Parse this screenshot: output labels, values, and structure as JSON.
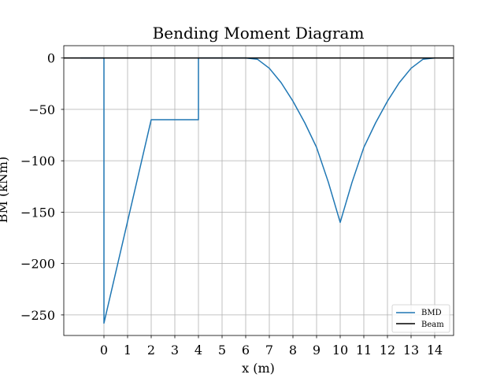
{
  "chart_data": {
    "type": "line",
    "title": "Bending Moment Diagram",
    "xlabel": "x (m)",
    "ylabel": "BM (kNm)",
    "xlim": [
      -1.7,
      14.8
    ],
    "ylim": [
      -270,
      12
    ],
    "xticks": [
      0,
      1,
      2,
      3,
      4,
      5,
      6,
      7,
      8,
      9,
      10,
      11,
      12,
      13,
      14
    ],
    "yticks": [
      0,
      -50,
      -100,
      -150,
      -200,
      -250
    ],
    "ytick_labels": [
      "0",
      "−50",
      "−100",
      "−150",
      "−200",
      "−250"
    ],
    "grid": true,
    "legend_position": "lower-right",
    "series": [
      {
        "name": "BMD",
        "color": "#1f77b4",
        "points": [
          [
            -1.0,
            0
          ],
          [
            0.0,
            0
          ],
          [
            0.0,
            -258
          ],
          [
            2.0,
            -60
          ],
          [
            4.0,
            -60
          ],
          [
            4.0,
            0
          ],
          [
            6.0,
            0
          ],
          [
            6.5,
            -1.25
          ],
          [
            7.0,
            -10
          ],
          [
            7.5,
            -24
          ],
          [
            8.0,
            -42
          ],
          [
            8.5,
            -63
          ],
          [
            9.0,
            -87
          ],
          [
            9.5,
            -121
          ],
          [
            10.0,
            -160
          ],
          [
            10.5,
            -121
          ],
          [
            11.0,
            -87
          ],
          [
            11.5,
            -63
          ],
          [
            12.0,
            -42
          ],
          [
            12.5,
            -24
          ],
          [
            13.0,
            -10
          ],
          [
            13.5,
            -1.25
          ],
          [
            14.0,
            0
          ]
        ]
      },
      {
        "name": "Beam",
        "color": "#000000",
        "points": [
          [
            -1.7,
            0
          ],
          [
            14.8,
            0
          ]
        ]
      }
    ]
  }
}
